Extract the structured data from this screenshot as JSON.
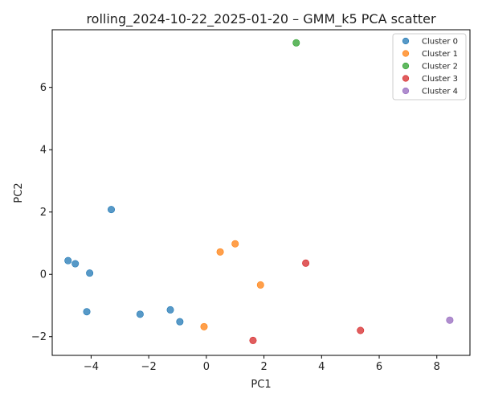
{
  "chart_data": {
    "type": "scatter",
    "title": "rolling_2024-10-22_2025-01-20 – GMM_k5 PCA scatter",
    "xlabel": "PC1",
    "ylabel": "PC2",
    "xlim": [
      -5.35,
      9.15
    ],
    "ylim": [
      -2.6,
      7.85
    ],
    "xticks": [
      -4,
      -2,
      0,
      2,
      4,
      6,
      8
    ],
    "yticks": [
      -2,
      0,
      2,
      4,
      6
    ],
    "grid": false,
    "legend_position": "top-right",
    "series": [
      {
        "name": "Cluster 0",
        "color": "#1f77b4",
        "points": [
          [
            -3.3,
            2.08
          ],
          [
            -4.8,
            0.44
          ],
          [
            -4.55,
            0.34
          ],
          [
            -4.05,
            0.04
          ],
          [
            -4.15,
            -1.2
          ],
          [
            -2.3,
            -1.28
          ],
          [
            -1.25,
            -1.14
          ],
          [
            -0.92,
            -1.52
          ]
        ]
      },
      {
        "name": "Cluster 1",
        "color": "#ff7f0e",
        "points": [
          [
            1.0,
            0.98
          ],
          [
            0.48,
            0.72
          ],
          [
            1.88,
            -0.34
          ],
          [
            -0.08,
            -1.68
          ]
        ]
      },
      {
        "name": "Cluster 2",
        "color": "#2ca02c",
        "points": [
          [
            3.12,
            7.43
          ]
        ]
      },
      {
        "name": "Cluster 3",
        "color": "#d62728",
        "points": [
          [
            3.45,
            0.36
          ],
          [
            5.35,
            -1.8
          ],
          [
            1.62,
            -2.12
          ]
        ]
      },
      {
        "name": "Cluster 4",
        "color": "#9467bd",
        "points": [
          [
            8.45,
            -1.47
          ]
        ]
      }
    ]
  }
}
